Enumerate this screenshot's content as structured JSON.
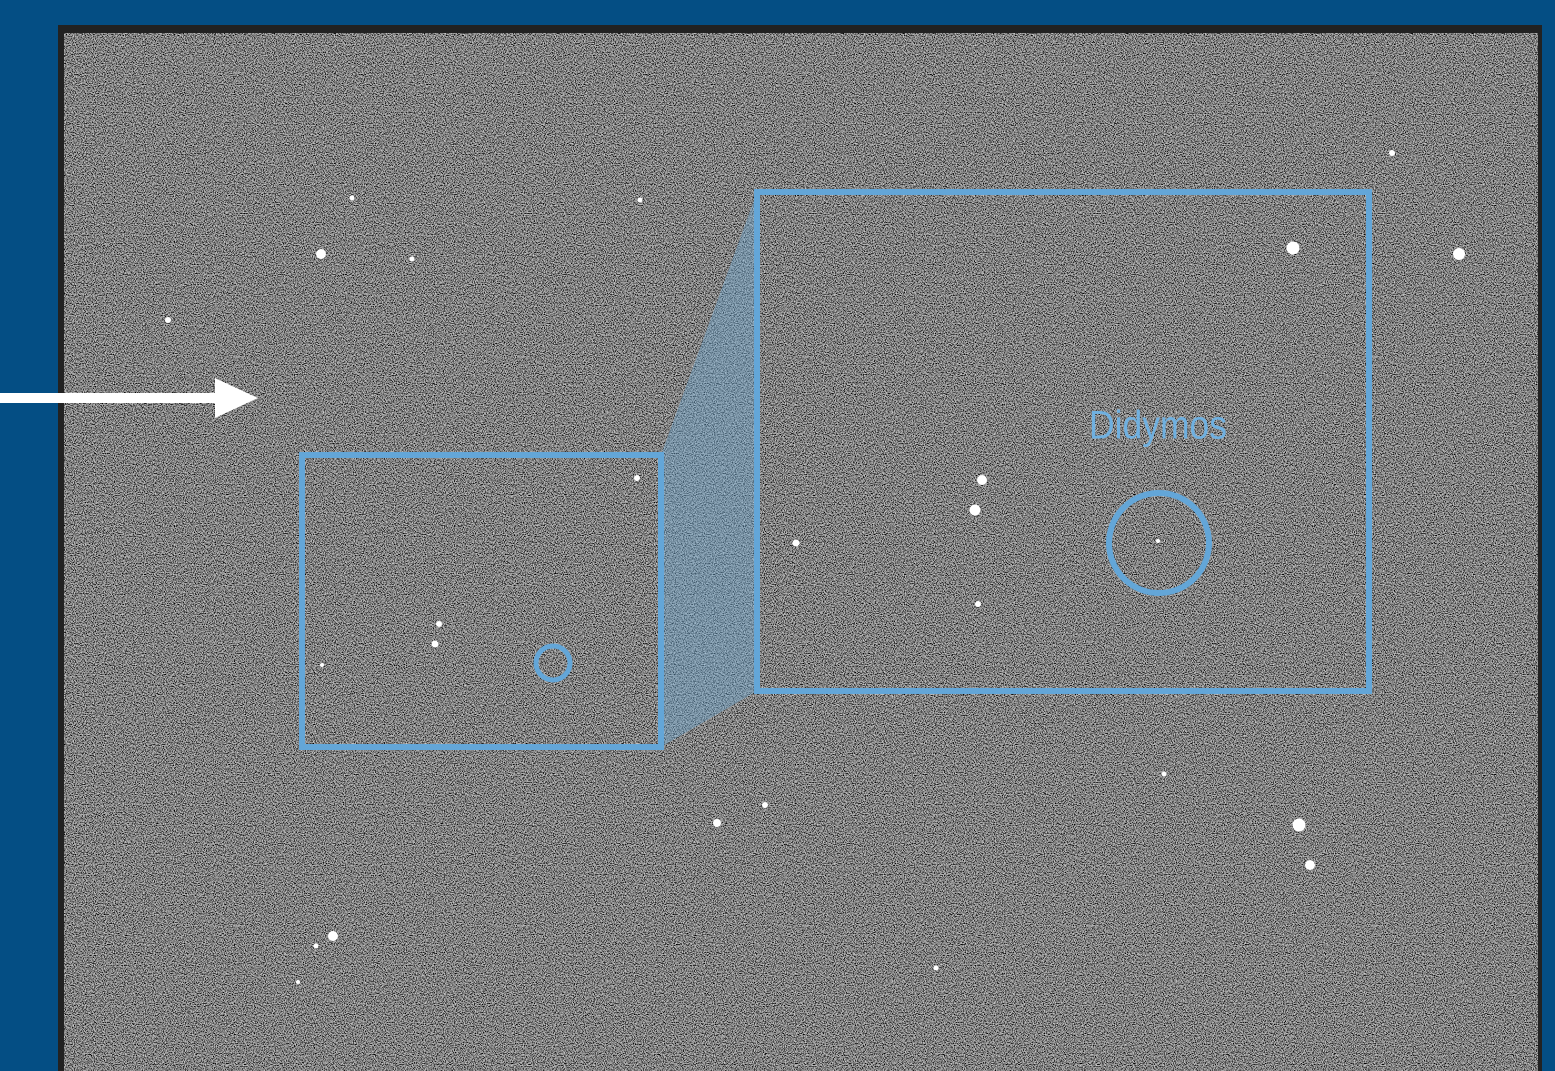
{
  "annotation": {
    "label": "Didymos"
  }
}
